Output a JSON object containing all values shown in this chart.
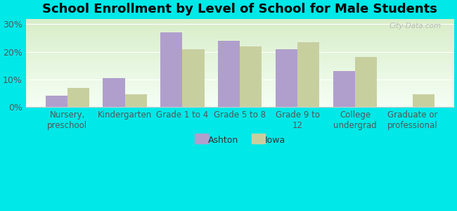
{
  "title": "School Enrollment by Level of School for Male Students",
  "categories": [
    "Nursery,\npreschool",
    "Kindergarten",
    "Grade 1 to 4",
    "Grade 5 to 8",
    "Grade 9 to\n12",
    "College\nundergrad",
    "Graduate or\nprofessional"
  ],
  "ashton": [
    4.0,
    10.5,
    27.0,
    24.0,
    21.0,
    13.0,
    0.0
  ],
  "iowa": [
    7.0,
    4.5,
    21.0,
    22.0,
    23.5,
    18.0,
    4.5
  ],
  "bar_color_ashton": "#b09fcc",
  "bar_color_iowa": "#c8cf9f",
  "background_outer": "#00e8e8",
  "background_inner_top": "#f5fff5",
  "background_inner_bottom": "#d8edc8",
  "yticks": [
    0,
    10,
    20,
    30
  ],
  "ylim": [
    0,
    32
  ],
  "legend_labels": [
    "Ashton",
    "Iowa"
  ],
  "title_fontsize": 13,
  "axis_label_fontsize": 8.5,
  "tick_fontsize": 9,
  "watermark": "City-Data.com",
  "bar_width": 0.38
}
